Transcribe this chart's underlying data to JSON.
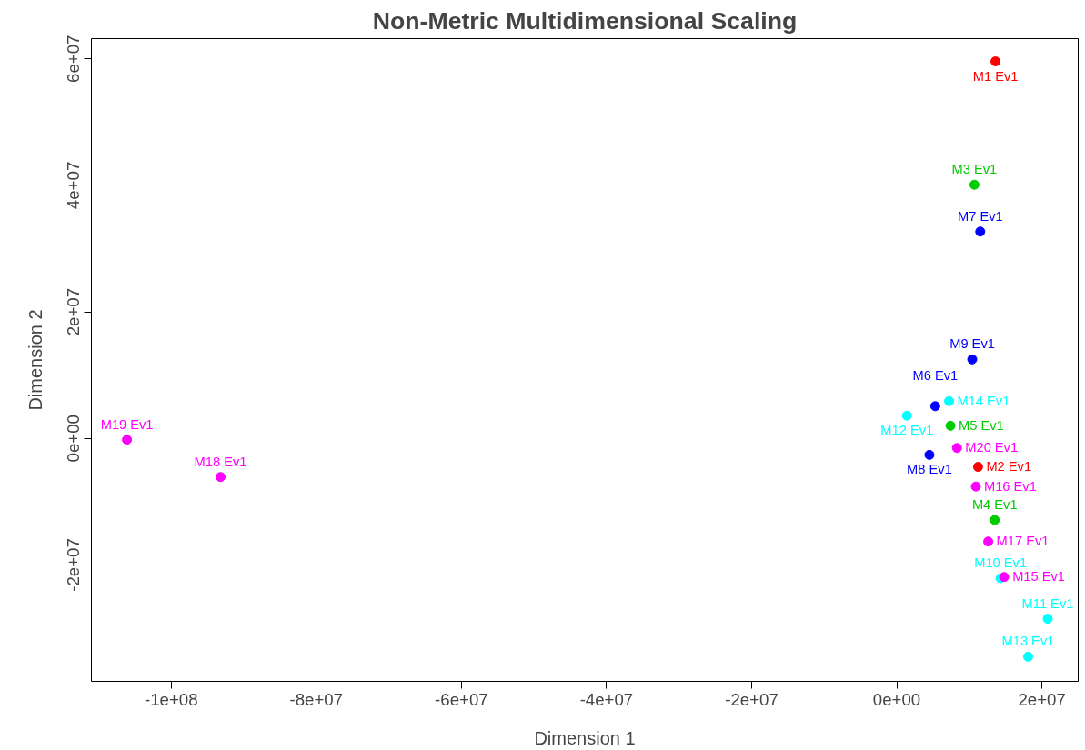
{
  "chart_data": {
    "type": "scatter",
    "title": "Non-Metric Multidimensional Scaling",
    "xlabel": "Dimension 1",
    "ylabel": "Dimension 2",
    "xlim": [
      -111000000,
      25000000
    ],
    "ylim": [
      -38400000,
      63200000
    ],
    "xticks": [
      {
        "value": -100000000,
        "label": "-1e+08"
      },
      {
        "value": -80000000,
        "label": "-8e+07"
      },
      {
        "value": -60000000,
        "label": "-6e+07"
      },
      {
        "value": -40000000,
        "label": "-4e+07"
      },
      {
        "value": -20000000,
        "label": "-2e+07"
      },
      {
        "value": 0,
        "label": "0e+00"
      },
      {
        "value": 20000000,
        "label": "2e+07"
      }
    ],
    "yticks": [
      {
        "value": -20000000,
        "label": "-2e+07"
      },
      {
        "value": 0,
        "label": "0e+00"
      },
      {
        "value": 20000000,
        "label": "2e+07"
      },
      {
        "value": 40000000,
        "label": "4e+07"
      },
      {
        "value": 60000000,
        "label": "6e+07"
      }
    ],
    "grid": false,
    "marker": "circle",
    "series": [
      {
        "color": "#ff0000",
        "x": [
          13600000,
          11200000
        ],
        "values": [
          59600000,
          -4500000
        ],
        "value_labels": [
          "M1 Ev1",
          "M2 Ev1"
        ]
      },
      {
        "color": "#00cd00",
        "x": [
          10700000,
          13500000,
          7400000
        ],
        "values": [
          40100000,
          -12900000,
          2000000
        ],
        "value_labels": [
          "M3 Ev1",
          "M4 Ev1",
          "M5 Ev1"
        ]
      },
      {
        "color": "#0000ff",
        "x": [
          5300000,
          11500000,
          4500000,
          10400000
        ],
        "values": [
          5100000,
          32700000,
          -2600000,
          12500000
        ],
        "value_labels": [
          "M6 Ev1",
          "M7 Ev1",
          "M8 Ev1",
          "M9 Ev1"
        ]
      },
      {
        "color": "#00ffff",
        "x": [
          14300000,
          20800000,
          1400000,
          18100000,
          7200000
        ],
        "values": [
          -22100000,
          -28500000,
          3600000,
          -34500000,
          5900000
        ],
        "value_labels": [
          "M10 Ev1",
          "M11 Ev1",
          "M12 Ev1",
          "M13 Ev1",
          "M14 Ev1"
        ]
      },
      {
        "color": "#ff00ff",
        "x": [
          14800000,
          10900000,
          12600000,
          -93200000,
          -106100000,
          8300000
        ],
        "values": [
          -21900000,
          -7600000,
          -16300000,
          -6100000,
          -200000,
          -1500000
        ],
        "value_labels": [
          "M15 Ev1",
          "M16 Ev1",
          "M17 Ev1",
          "M18 Ev1",
          "M19 Ev1",
          "M20 Ev1"
        ]
      }
    ]
  }
}
